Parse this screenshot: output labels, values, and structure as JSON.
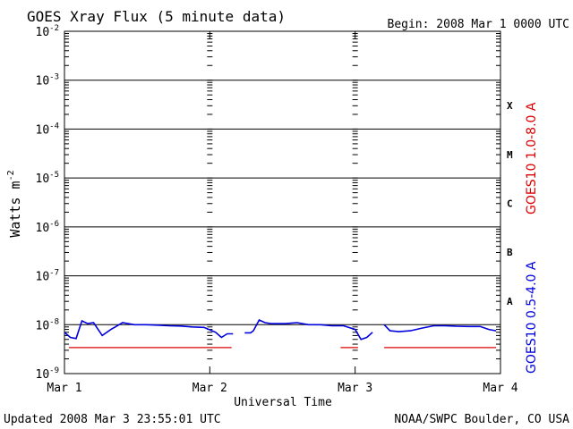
{
  "chart_data": {
    "type": "line",
    "title": "GOES Xray Flux (5 minute data)",
    "begin_text": "Begin:  2008 Mar 1 0000 UTC",
    "xlabel": "Universal Time",
    "ylabel": "Watts m",
    "ylabel_exp": "-2",
    "x_ticks": [
      "Mar 1",
      "Mar 2",
      "Mar 3",
      "Mar 4"
    ],
    "xlim": [
      0,
      3
    ],
    "x_unit": "days since Mar 1 0000 UTC",
    "ylim": [
      1e-09,
      0.01
    ],
    "y_scale": "log",
    "y_ticks": [
      {
        "base": "10",
        "exp": "-9"
      },
      {
        "base": "10",
        "exp": "-8"
      },
      {
        "base": "10",
        "exp": "-7"
      },
      {
        "base": "10",
        "exp": "-6"
      },
      {
        "base": "10",
        "exp": "-5"
      },
      {
        "base": "10",
        "exp": "-4"
      },
      {
        "base": "10",
        "exp": "-3"
      },
      {
        "base": "10",
        "exp": "-2"
      }
    ],
    "flare_classes": [
      "A",
      "B",
      "C",
      "M",
      "X"
    ],
    "grid": true,
    "series": [
      {
        "name": "GOES10 1.0-8.0 A",
        "color": "#dd0000",
        "x": [
          0.03,
          0.17,
          0.38,
          1.15,
          1.25,
          1.9,
          2.02,
          2.1,
          2.2,
          2.97
        ],
        "values": [
          3.4e-09,
          3.4e-09,
          3.4e-09,
          3.4e-09,
          null,
          3.4e-09,
          3.4e-09,
          null,
          3.4e-09,
          3.4e-09
        ]
      },
      {
        "name": "GOES10 0.5-4.0 A",
        "color": "#0000dd",
        "x": [
          0.0,
          0.04,
          0.08,
          0.12,
          0.16,
          0.2,
          0.26,
          0.32,
          0.4,
          0.48,
          0.56,
          0.64,
          0.72,
          0.8,
          0.88,
          0.96,
          1.04,
          1.08,
          1.12,
          1.16,
          1.2,
          1.24,
          1.28,
          1.3,
          1.34,
          1.38,
          1.42,
          1.46,
          1.52,
          1.6,
          1.68,
          1.76,
          1.84,
          1.92,
          2.0,
          2.04,
          2.08,
          2.12,
          2.16,
          2.2,
          2.24,
          2.3,
          2.38,
          2.46,
          2.54,
          2.62,
          2.7,
          2.78,
          2.86,
          2.92,
          2.97
        ],
        "values": [
          7e-09,
          5.5e-09,
          5.2e-09,
          1.2e-08,
          1.05e-08,
          1.1e-08,
          6e-09,
          8e-09,
          1.1e-08,
          1e-08,
          1e-08,
          9.8e-09,
          9.5e-09,
          9.4e-09,
          9e-09,
          8.8e-09,
          7e-09,
          5.5e-09,
          6.5e-09,
          6.5e-09,
          null,
          6.8e-09,
          6.8e-09,
          7.5e-09,
          1.25e-08,
          1.1e-08,
          1.05e-08,
          1.05e-08,
          1.05e-08,
          1.1e-08,
          1e-08,
          1e-08,
          9.5e-09,
          9.5e-09,
          8e-09,
          5e-09,
          5.5e-09,
          7e-09,
          null,
          1e-08,
          7.5e-09,
          7.2e-09,
          7.5e-09,
          8.5e-09,
          9.5e-09,
          9.5e-09,
          9.3e-09,
          9.2e-09,
          9.2e-09,
          8e-09,
          7.5e-09
        ]
      }
    ]
  },
  "footer": {
    "updated": "Updated 2008 Mar  3 23:55:01 UTC",
    "source": "NOAA/SWPC Boulder, CO USA"
  },
  "colors": {
    "frame": "#000000",
    "long_channel": "#dd0000",
    "short_channel": "#0000dd"
  }
}
